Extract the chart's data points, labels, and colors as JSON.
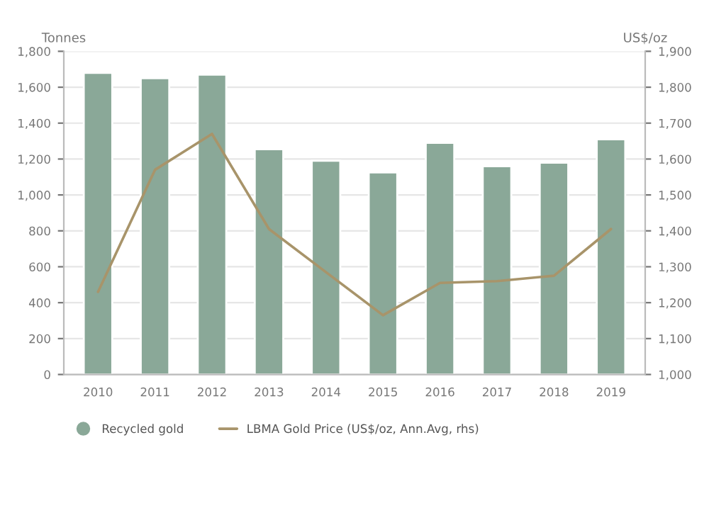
{
  "chart_data": {
    "type": "bar",
    "categories": [
      "2010",
      "2011",
      "2012",
      "2013",
      "2014",
      "2015",
      "2016",
      "2017",
      "2018",
      "2019"
    ],
    "ylabel": "Tonnes",
    "y2label": "US$/oz",
    "series": [
      {
        "name": "Recycled gold",
        "color": "#8aa898",
        "values": [
          1680,
          1650,
          1670,
          1255,
          1190,
          1125,
          1290,
          1160,
          1180,
          1310
        ]
      },
      {
        "name": "LBMA Gold Price (US$/oz, Ann.Avg, rhs)",
        "type": "line",
        "axis": "y2",
        "color": "#a8946a",
        "values": [
          1230,
          1570,
          1670,
          1405,
          1285,
          1165,
          1255,
          1260,
          1275,
          1405
        ]
      }
    ],
    "ylim": [
      0,
      1800
    ],
    "yticks": [
      {
        "value": 0,
        "label": "0"
      },
      {
        "value": 200,
        "label": "200"
      },
      {
        "value": 400,
        "label": "400"
      },
      {
        "value": 600,
        "label": "600"
      },
      {
        "value": 800,
        "label": "800"
      },
      {
        "value": 1000,
        "label": "1,000"
      },
      {
        "value": 1200,
        "label": "1,200"
      },
      {
        "value": 1400,
        "label": "1,400"
      },
      {
        "value": 1600,
        "label": "1,600"
      },
      {
        "value": 1800,
        "label": "1,800"
      }
    ],
    "y2lim": [
      1000,
      1900
    ],
    "y2ticks": [
      {
        "value": 1000,
        "label": "1,000"
      },
      {
        "value": 1100,
        "label": "1,100"
      },
      {
        "value": 1200,
        "label": "1,200"
      },
      {
        "value": 1300,
        "label": "1,300"
      },
      {
        "value": 1400,
        "label": "1,400"
      },
      {
        "value": 1500,
        "label": "1,500"
      },
      {
        "value": 1600,
        "label": "1,600"
      },
      {
        "value": 1700,
        "label": "1,700"
      },
      {
        "value": 1800,
        "label": "1,800"
      },
      {
        "value": 1900,
        "label": "1,900"
      }
    ],
    "grid": "y",
    "legend": "bottom left"
  }
}
